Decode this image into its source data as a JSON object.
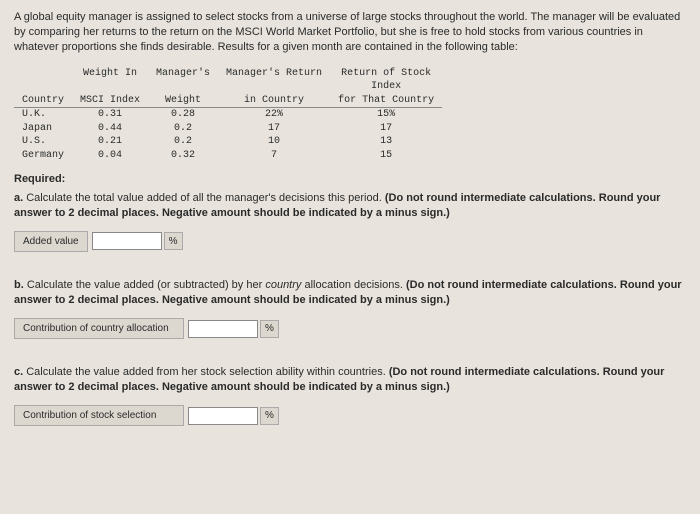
{
  "intro": "A global equity manager is assigned to select stocks from a universe of large stocks throughout the world. The manager will be evaluated by comparing her returns to the return on the MSCI World Market Portfolio, but she is free to hold stocks from various countries in whatever proportions she finds desirable. Results for a given month are contained in the following table:",
  "table": {
    "h1": "Country",
    "h2a": "Weight In",
    "h2b": "MSCI Index",
    "h3a": "Manager's",
    "h3b": "Weight",
    "h4a": "Manager's Return",
    "h4b": "in Country",
    "h5a": "Return of Stock",
    "h5b": "Index",
    "h5c": "for That Country",
    "rows": [
      {
        "c": "U.K.",
        "w": "0.31",
        "m": "0.28",
        "r": "22%",
        "i": "15%"
      },
      {
        "c": "Japan",
        "w": "0.44",
        "m": "0.2",
        "r": "17",
        "i": "17"
      },
      {
        "c": "U.S.",
        "w": "0.21",
        "m": "0.2",
        "r": "10",
        "i": "13"
      },
      {
        "c": "Germany",
        "w": "0.04",
        "m": "0.32",
        "r": "7",
        "i": "15"
      }
    ]
  },
  "required_label": "Required:",
  "qa_prefix": "a. ",
  "qa_text": "Calculate the total value added of all the manager's decisions this period. ",
  "qa_note": "(Do not round intermediate calculations. Round your answer to 2 decimal places. Negative amount should be indicated by a minus sign.)",
  "qa_input_label": "Added value",
  "qb_prefix": "b. ",
  "qb_text1": "Calculate the value added (or subtracted) by her ",
  "qb_country": "country",
  "qb_text2": " allocation decisions. ",
  "qb_note": "(Do not round intermediate calculations. Round your answer to 2 decimal places. Negative amount should be indicated by a minus sign.)",
  "qb_input_label": "Contribution of country allocation",
  "qc_prefix": "c. ",
  "qc_text": "Calculate the value added from her stock selection ability within countries. ",
  "qc_note": "(Do not round intermediate calculations. Round your answer to 2 decimal places. Negative amount should be indicated by a minus sign.)",
  "qc_input_label": "Contribution of stock selection",
  "pct": "%"
}
